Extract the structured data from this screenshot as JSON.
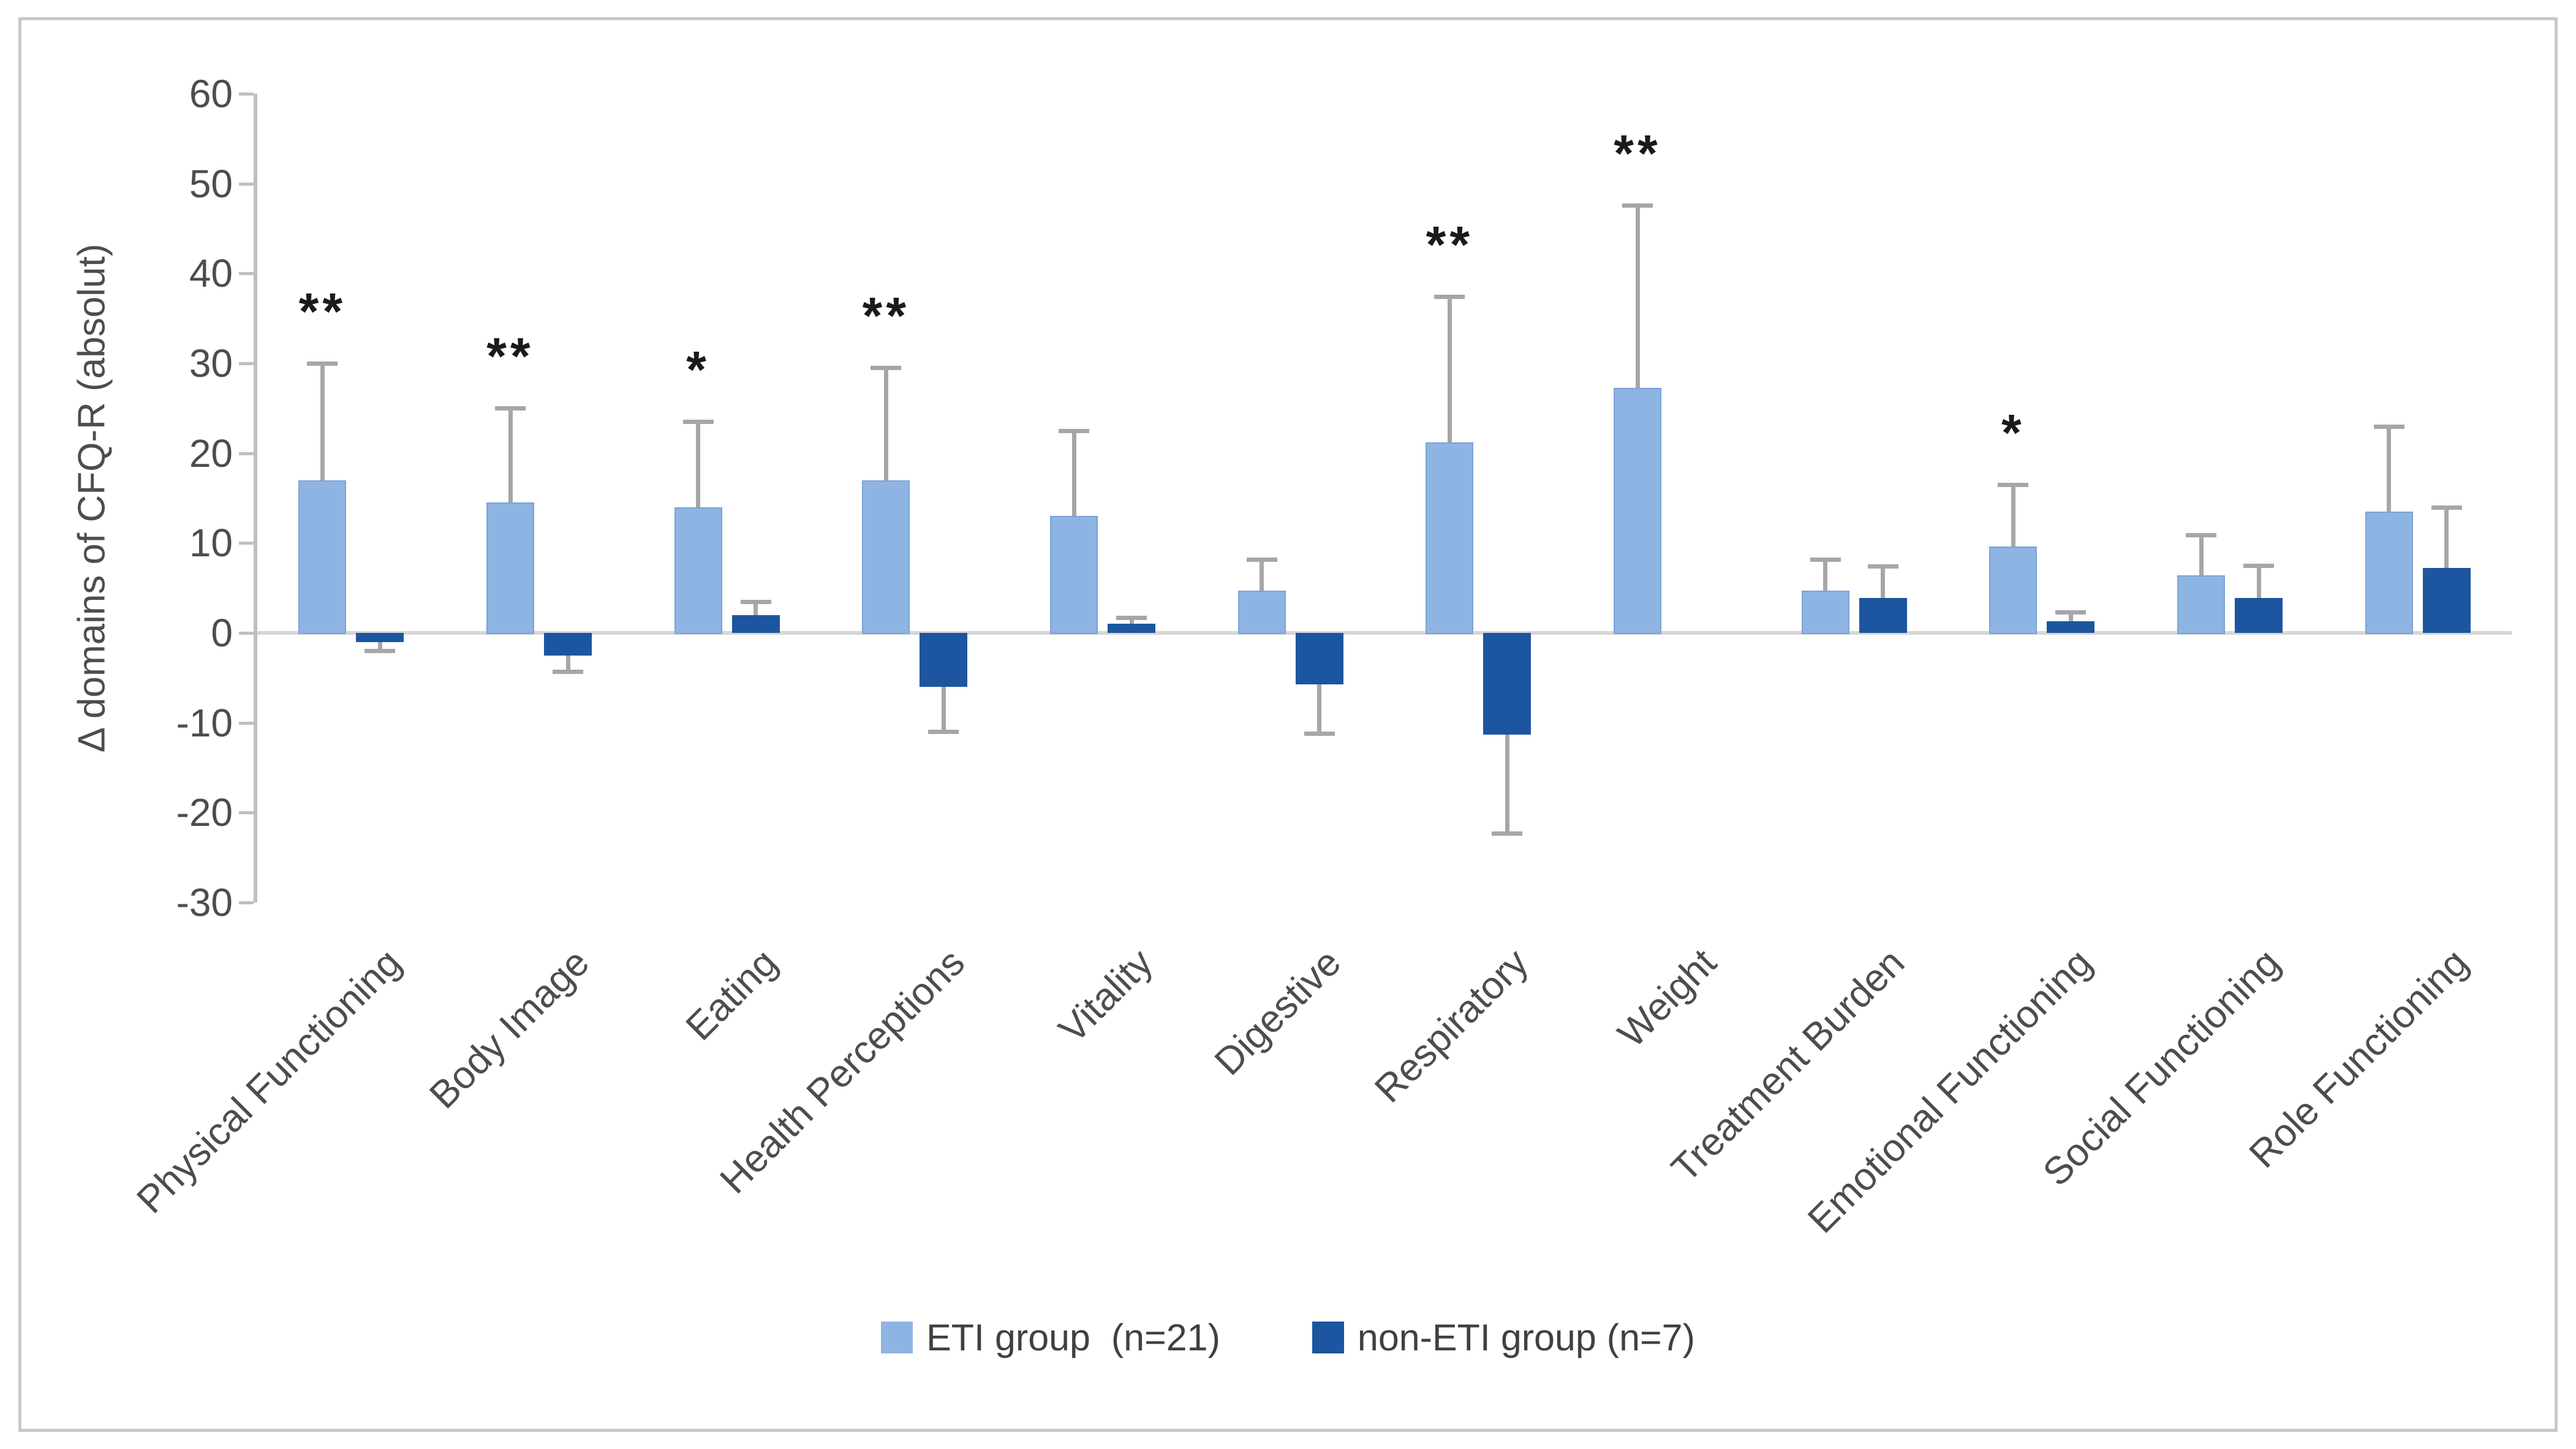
{
  "figure": {
    "background": "#FFFFFF",
    "border_color": "#C9C9C9"
  },
  "colors": {
    "eti_bar": "#8EB4E3",
    "eti_bar_border": "#7CA3D6",
    "non_eti_bar": "#1C56A0",
    "error_bar": "#A6A6A6",
    "axis_line": "#BFBFBF",
    "baseline": "#D6D6D6",
    "tick_text": "#4D4D4D",
    "legend_text": "#404040",
    "significance_text": "#1A1A1A"
  },
  "chart_data": {
    "type": "bar",
    "title": "",
    "xlabel": "",
    "ylabel": "Δ domains of CFQ-R (absolut)",
    "ylim": [
      -30,
      60
    ],
    "ytick_step": 10,
    "ytick_labels": [
      "60",
      "50",
      "40",
      "30",
      "20",
      "10",
      "0",
      "-10",
      "-20",
      "-30"
    ],
    "grid": false,
    "legend_position": "bottom-center",
    "error_bars": "one-sided, away from zero, gray caps",
    "significance_note": "asterisks above ETI error bars",
    "categories": [
      "Physical Functioning",
      "Body Image",
      "Eating",
      "Health Perceptions",
      "Vitality",
      "Digestive",
      "Respiratory",
      "Weight",
      "Treatment Burden",
      "Emotional Functioning",
      "Social Functioning",
      "Role Functioning"
    ],
    "series": [
      {
        "name": "ETI group  (n=21)",
        "color": "#8EB4E3",
        "values": [
          17,
          14.5,
          14,
          17,
          13,
          4.7,
          21.2,
          27.3,
          4.7,
          9.6,
          6.4,
          13.5
        ],
        "errors": [
          13,
          10.5,
          9.5,
          12.5,
          9.5,
          3.5,
          16.2,
          20.3,
          3.5,
          6.9,
          4.5,
          9.5
        ],
        "significance": [
          "**",
          "**",
          "*",
          "**",
          "",
          "",
          "**",
          "**",
          "",
          "*",
          "",
          ""
        ]
      },
      {
        "name": "non-ETI group (n=7)",
        "color": "#1C56A0",
        "values": [
          -1,
          -2.5,
          2,
          -6,
          1,
          -5.7,
          -11.3,
          0,
          3.9,
          1.3,
          3.9,
          7.2
        ],
        "errors": [
          1,
          1.8,
          1.5,
          5,
          0.7,
          5.5,
          11,
          0,
          3.5,
          1,
          3.6,
          6.8
        ],
        "significance": [
          "",
          "",
          "",
          "",
          "",
          "",
          "",
          "",
          "",
          "",
          "",
          ""
        ]
      }
    ]
  }
}
